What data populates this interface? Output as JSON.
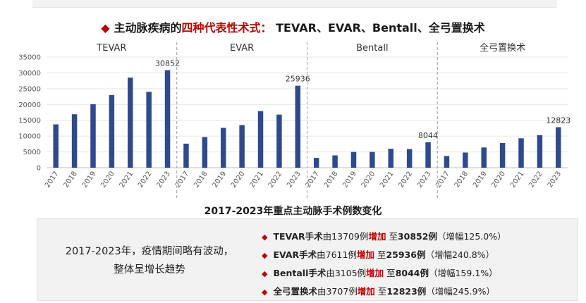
{
  "header": {
    "marker": "◆",
    "title_prefix": "主动脉疾病的",
    "title_accent": "四种代表性术式：",
    "title_suffix": " TEVAR、EVAR、Bentall、全弓置换术"
  },
  "chart_data": {
    "type": "bar",
    "title": "2017-2023年重点主动脉手术例数变化",
    "ylim": [
      0,
      35000
    ],
    "yticks": [
      0,
      5000,
      10000,
      15000,
      20000,
      25000,
      30000,
      35000
    ],
    "bar_color": "#2e4a8f",
    "grid": true,
    "groups": [
      {
        "name": "TEVAR",
        "years": [
          "2017",
          "2018",
          "2019",
          "2020",
          "2021",
          "2022",
          "2023"
        ],
        "values": [
          13709,
          16900,
          20100,
          23000,
          28500,
          24000,
          30852
        ],
        "label_last": "30852"
      },
      {
        "name": "EVAR",
        "years": [
          "2017",
          "2018",
          "2019",
          "2020",
          "2021",
          "2022",
          "2023"
        ],
        "values": [
          7611,
          9700,
          12600,
          13500,
          17900,
          16800,
          25936
        ],
        "label_last": "25936"
      },
      {
        "name": "Bentall",
        "years": [
          "2017",
          "2018",
          "2019",
          "2020",
          "2021",
          "2022",
          "2023"
        ],
        "values": [
          3105,
          3900,
          5000,
          5000,
          6000,
          5900,
          8044
        ],
        "label_last": "8044"
      },
      {
        "name": "全弓置换术",
        "years": [
          "2017",
          "2018",
          "2019",
          "2020",
          "2021",
          "2022",
          "2023"
        ],
        "values": [
          3707,
          4800,
          6400,
          7800,
          9300,
          10300,
          12823
        ],
        "label_last": "12823"
      }
    ]
  },
  "summary": {
    "line1": "2017-2023年，疫情期间略有波动，",
    "line2": "整体呈增长趋势"
  },
  "bullets": [
    {
      "name": "TEVAR手术",
      "from": "由13709例",
      "inc": "增加",
      "to_prefix": "至",
      "to": "30852例",
      "pct": "（增幅125.0%）"
    },
    {
      "name": "EVAR手术",
      "from": "由7611例",
      "inc": "增加",
      "to_prefix": "至",
      "to": "25936例",
      "pct": "（增幅240.8%）"
    },
    {
      "name": "Bentall手术",
      "from": "由3105例",
      "inc": "增加",
      "to_prefix": "至",
      "to": "8044例",
      "pct": "（增幅159.1%）"
    },
    {
      "name": "全弓置换术",
      "from": "由3707例",
      "inc": "增加",
      "to_prefix": "至",
      "to": "12823例",
      "pct": "（增幅245.9%）"
    }
  ],
  "bullet_marker": "◆"
}
